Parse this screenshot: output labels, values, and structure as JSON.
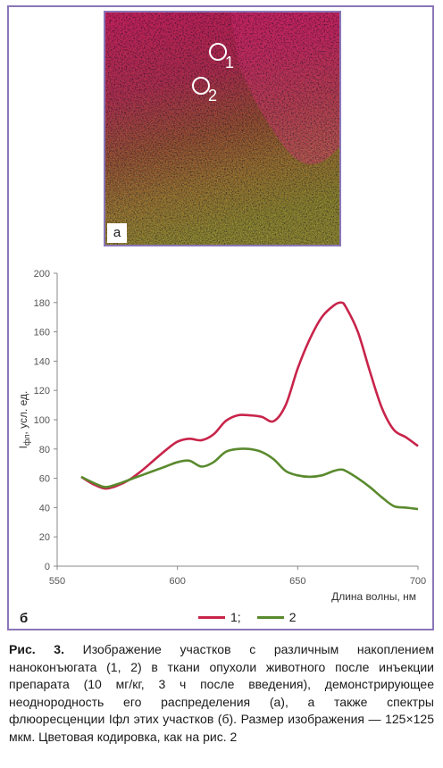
{
  "panel_a": {
    "label": "а",
    "regions": [
      {
        "label": "1"
      },
      {
        "label": "2"
      }
    ]
  },
  "panel_b": {
    "label": "б"
  },
  "chart_data": {
    "type": "line",
    "xlabel": "Длина волны, нм",
    "ylabel": "Iфл, усл. ед.",
    "xlim": [
      550,
      700
    ],
    "ylim": [
      0,
      200
    ],
    "xticks": [
      550,
      600,
      650,
      700
    ],
    "yticks": [
      0,
      20,
      40,
      60,
      80,
      100,
      120,
      140,
      160,
      180,
      200
    ],
    "grid": false,
    "legend_position": "bottom-center",
    "series": [
      {
        "name": "1;",
        "color": "#c8244a",
        "x": [
          560,
          565,
          570,
          575,
          580,
          585,
          590,
          595,
          600,
          605,
          610,
          615,
          620,
          625,
          630,
          635,
          640,
          645,
          650,
          655,
          660,
          665,
          668,
          670,
          675,
          680,
          685,
          690,
          695,
          700
        ],
        "y": [
          61,
          56,
          53,
          55,
          59,
          65,
          72,
          79,
          85,
          87,
          86,
          90,
          99,
          103,
          103,
          102,
          99,
          110,
          135,
          155,
          170,
          178,
          180,
          177,
          160,
          133,
          108,
          93,
          88,
          82
        ]
      },
      {
        "name": "2",
        "color": "#5a8a2e",
        "x": [
          560,
          565,
          570,
          575,
          580,
          585,
          590,
          595,
          600,
          605,
          610,
          615,
          620,
          625,
          630,
          635,
          640,
          645,
          650,
          655,
          660,
          665,
          668,
          670,
          675,
          680,
          685,
          690,
          695,
          700
        ],
        "y": [
          61,
          57,
          54,
          56,
          59,
          62,
          65,
          68,
          71,
          72,
          68,
          71,
          78,
          80,
          80,
          78,
          73,
          65,
          62,
          61,
          62,
          65,
          66,
          65,
          60,
          54,
          47,
          41,
          40,
          39
        ]
      }
    ]
  },
  "caption": {
    "lead": "Рис. 3.",
    "text": " Изображение участков с различным накоплением наноконъюгата (1, 2) в ткани опухоли животного после инъекции препарата (10 мг/кг, 3 ч после введения), демонстрирующее неоднородность его распределения (а), а также спектры флюоресценции Iфл этих участков (б). Размер изображения — 125×125 мкм. Цветовая кодировка, как на рис. 2"
  }
}
